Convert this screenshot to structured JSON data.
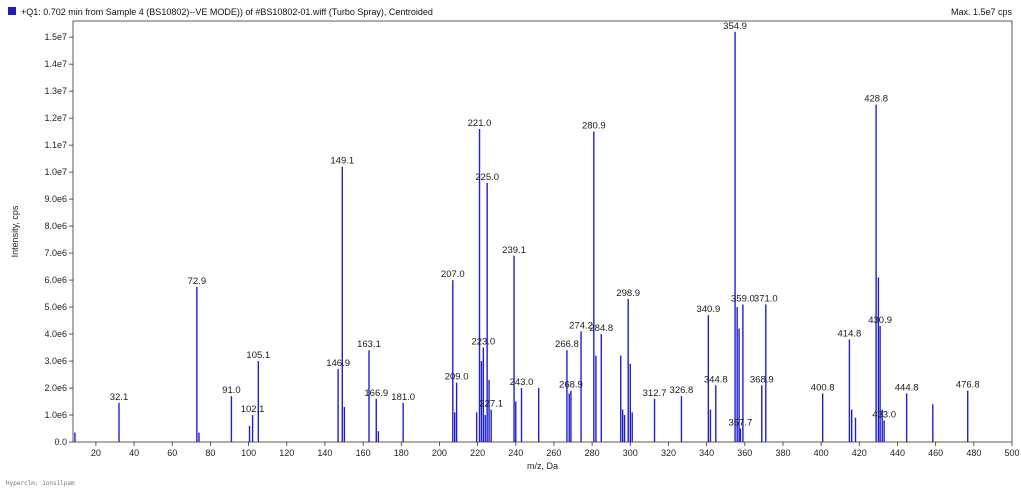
{
  "header": {
    "title": "+Q1: 0.702 min from Sample 4 (BS10802)--VE MODE)) of #BS10802-01.wiff (Turbo Spray), Centroided",
    "max_label": "Max. 1.5e7 cps"
  },
  "footer": {
    "text": "Hyperclm: 1ons1lpam"
  },
  "colors": {
    "accent": "#1f1fd0",
    "marker": "#1c1cc4",
    "axis": "#333333"
  },
  "chart_data": {
    "type": "bar",
    "title": "+Q1: 0.702 min from Sample 4 (BS10802)--VE MODE)) of #BS10802-01.wiff (Turbo Spray), Centroided",
    "xlabel": "m/z, Da",
    "ylabel": "Intensity, cps",
    "xlim": [
      8,
      500
    ],
    "ylim": [
      0,
      15600000
    ],
    "x_ticks": [
      20,
      40,
      60,
      80,
      100,
      120,
      140,
      160,
      180,
      200,
      220,
      240,
      260,
      280,
      300,
      320,
      340,
      360,
      380,
      400,
      420,
      440,
      460,
      480,
      500
    ],
    "x_tick_labels": [
      "20",
      "40",
      "60",
      "80",
      "100",
      "120",
      "140",
      "160",
      "180",
      "200",
      "220",
      "240",
      "260",
      "280",
      "300",
      "320",
      "340",
      "360",
      "380",
      "400",
      "420",
      "440",
      "460",
      "480",
      "500"
    ],
    "y_ticks": [
      0,
      1000000,
      2000000,
      3000000,
      4000000,
      5000000,
      6000000,
      7000000,
      8000000,
      9000000,
      10000000,
      11000000,
      12000000,
      13000000,
      14000000,
      15000000
    ],
    "y_tick_labels": [
      "0.0",
      "1.0e6",
      "2.0e6",
      "3.0e6",
      "4.0e6",
      "5.0e6",
      "6.0e6",
      "7.0e6",
      "8.0e6",
      "9.0e6",
      "1.0e7",
      "1.1e7",
      "1.2e7",
      "1.3e7",
      "1.4e7",
      "1.5e7"
    ],
    "peaks": [
      {
        "mz": 9.0,
        "intensity": 350000
      },
      {
        "mz": 32.1,
        "intensity": 1450000
      },
      {
        "mz": 72.9,
        "intensity": 5750000
      },
      {
        "mz": 74.0,
        "intensity": 350000
      },
      {
        "mz": 91.0,
        "intensity": 1700000
      },
      {
        "mz": 100.5,
        "intensity": 600000
      },
      {
        "mz": 102.1,
        "intensity": 1000000
      },
      {
        "mz": 105.1,
        "intensity": 3000000
      },
      {
        "mz": 146.9,
        "intensity": 2700000
      },
      {
        "mz": 149.1,
        "intensity": 10200000
      },
      {
        "mz": 150.2,
        "intensity": 1300000
      },
      {
        "mz": 163.1,
        "intensity": 3400000
      },
      {
        "mz": 166.9,
        "intensity": 1600000
      },
      {
        "mz": 168.0,
        "intensity": 400000
      },
      {
        "mz": 181.0,
        "intensity": 1450000
      },
      {
        "mz": 207.0,
        "intensity": 6000000
      },
      {
        "mz": 208.0,
        "intensity": 1100000
      },
      {
        "mz": 209.0,
        "intensity": 2200000
      },
      {
        "mz": 219.5,
        "intensity": 1100000
      },
      {
        "mz": 221.0,
        "intensity": 11600000
      },
      {
        "mz": 222.0,
        "intensity": 3000000
      },
      {
        "mz": 223.0,
        "intensity": 3500000
      },
      {
        "mz": 224.0,
        "intensity": 1000000
      },
      {
        "mz": 225.0,
        "intensity": 9600000
      },
      {
        "mz": 226.0,
        "intensity": 2300000
      },
      {
        "mz": 227.1,
        "intensity": 1200000
      },
      {
        "mz": 239.1,
        "intensity": 6900000
      },
      {
        "mz": 240.0,
        "intensity": 1500000
      },
      {
        "mz": 243.0,
        "intensity": 2000000
      },
      {
        "mz": 252.0,
        "intensity": 2000000
      },
      {
        "mz": 266.8,
        "intensity": 3400000
      },
      {
        "mz": 268.0,
        "intensity": 1800000
      },
      {
        "mz": 268.9,
        "intensity": 1900000
      },
      {
        "mz": 274.2,
        "intensity": 4100000
      },
      {
        "mz": 280.9,
        "intensity": 11500000
      },
      {
        "mz": 282.0,
        "intensity": 3200000
      },
      {
        "mz": 284.8,
        "intensity": 4000000
      },
      {
        "mz": 295.0,
        "intensity": 3200000
      },
      {
        "mz": 296.0,
        "intensity": 1200000
      },
      {
        "mz": 297.0,
        "intensity": 1000000
      },
      {
        "mz": 298.9,
        "intensity": 5300000
      },
      {
        "mz": 300.0,
        "intensity": 2900000
      },
      {
        "mz": 301.0,
        "intensity": 1100000
      },
      {
        "mz": 312.7,
        "intensity": 1600000
      },
      {
        "mz": 326.8,
        "intensity": 1700000
      },
      {
        "mz": 340.9,
        "intensity": 4700000
      },
      {
        "mz": 342.0,
        "intensity": 1200000
      },
      {
        "mz": 344.8,
        "intensity": 2100000
      },
      {
        "mz": 354.9,
        "intensity": 15200000
      },
      {
        "mz": 356.0,
        "intensity": 5000000
      },
      {
        "mz": 357.0,
        "intensity": 4200000
      },
      {
        "mz": 357.7,
        "intensity": 500000
      },
      {
        "mz": 359.0,
        "intensity": 5100000
      },
      {
        "mz": 368.9,
        "intensity": 2100000
      },
      {
        "mz": 371.0,
        "intensity": 5100000
      },
      {
        "mz": 400.8,
        "intensity": 1800000
      },
      {
        "mz": 414.8,
        "intensity": 3800000
      },
      {
        "mz": 416.0,
        "intensity": 1200000
      },
      {
        "mz": 418.0,
        "intensity": 900000
      },
      {
        "mz": 428.8,
        "intensity": 12500000
      },
      {
        "mz": 430.0,
        "intensity": 6100000
      },
      {
        "mz": 430.9,
        "intensity": 4300000
      },
      {
        "mz": 432.0,
        "intensity": 1200000
      },
      {
        "mz": 433.0,
        "intensity": 800000
      },
      {
        "mz": 444.8,
        "intensity": 1800000
      },
      {
        "mz": 458.5,
        "intensity": 1400000
      },
      {
        "mz": 476.8,
        "intensity": 1900000
      }
    ],
    "annotations": [
      {
        "mz": 32.1,
        "intensity": 1450000,
        "label": "32.1"
      },
      {
        "mz": 72.9,
        "intensity": 5750000,
        "label": "72.9"
      },
      {
        "mz": 91.0,
        "intensity": 1700000,
        "label": "91.0"
      },
      {
        "mz": 102.1,
        "intensity": 1000000,
        "label": "102.1"
      },
      {
        "mz": 105.1,
        "intensity": 3000000,
        "label": "105.1"
      },
      {
        "mz": 146.9,
        "intensity": 2700000,
        "label": "146.9"
      },
      {
        "mz": 149.1,
        "intensity": 10200000,
        "label": "149.1"
      },
      {
        "mz": 163.1,
        "intensity": 3400000,
        "label": "163.1"
      },
      {
        "mz": 166.9,
        "intensity": 1600000,
        "label": "166.9"
      },
      {
        "mz": 181.0,
        "intensity": 1450000,
        "label": "181.0"
      },
      {
        "mz": 207.0,
        "intensity": 6000000,
        "label": "207.0"
      },
      {
        "mz": 209.0,
        "intensity": 2200000,
        "label": "209.0"
      },
      {
        "mz": 221.0,
        "intensity": 11600000,
        "label": "221.0"
      },
      {
        "mz": 223.0,
        "intensity": 3500000,
        "label": "223.0"
      },
      {
        "mz": 225.0,
        "intensity": 9600000,
        "label": "225.0"
      },
      {
        "mz": 227.1,
        "intensity": 1200000,
        "label": "227.1"
      },
      {
        "mz": 239.1,
        "intensity": 6900000,
        "label": "239.1"
      },
      {
        "mz": 243.0,
        "intensity": 2000000,
        "label": "243.0"
      },
      {
        "mz": 266.8,
        "intensity": 3400000,
        "label": "266.8"
      },
      {
        "mz": 268.9,
        "intensity": 1900000,
        "label": "268.9"
      },
      {
        "mz": 274.2,
        "intensity": 4100000,
        "label": "274.2"
      },
      {
        "mz": 280.9,
        "intensity": 11500000,
        "label": "280.9"
      },
      {
        "mz": 284.8,
        "intensity": 4000000,
        "label": "284.8"
      },
      {
        "mz": 298.9,
        "intensity": 5300000,
        "label": "298.9"
      },
      {
        "mz": 312.7,
        "intensity": 1600000,
        "label": "312.7"
      },
      {
        "mz": 326.8,
        "intensity": 1700000,
        "label": "326.8"
      },
      {
        "mz": 340.9,
        "intensity": 4700000,
        "label": "340.9"
      },
      {
        "mz": 344.8,
        "intensity": 2100000,
        "label": "344.8"
      },
      {
        "mz": 354.9,
        "intensity": 15200000,
        "label": "354.9"
      },
      {
        "mz": 357.7,
        "intensity": 500000,
        "label": "357.7"
      },
      {
        "mz": 359.0,
        "intensity": 5100000,
        "label": "359.0"
      },
      {
        "mz": 368.9,
        "intensity": 2100000,
        "label": "368.9"
      },
      {
        "mz": 371.0,
        "intensity": 5100000,
        "label": "371.0"
      },
      {
        "mz": 400.8,
        "intensity": 1800000,
        "label": "400.8"
      },
      {
        "mz": 414.8,
        "intensity": 3800000,
        "label": "414.8"
      },
      {
        "mz": 428.8,
        "intensity": 12500000,
        "label": "428.8"
      },
      {
        "mz": 430.9,
        "intensity": 4300000,
        "label": "430.9"
      },
      {
        "mz": 433.0,
        "intensity": 800000,
        "label": "433.0"
      },
      {
        "mz": 444.8,
        "intensity": 1800000,
        "label": "444.8"
      },
      {
        "mz": 476.8,
        "intensity": 1900000,
        "label": "476.8"
      }
    ],
    "grid": false,
    "legend": "none"
  }
}
